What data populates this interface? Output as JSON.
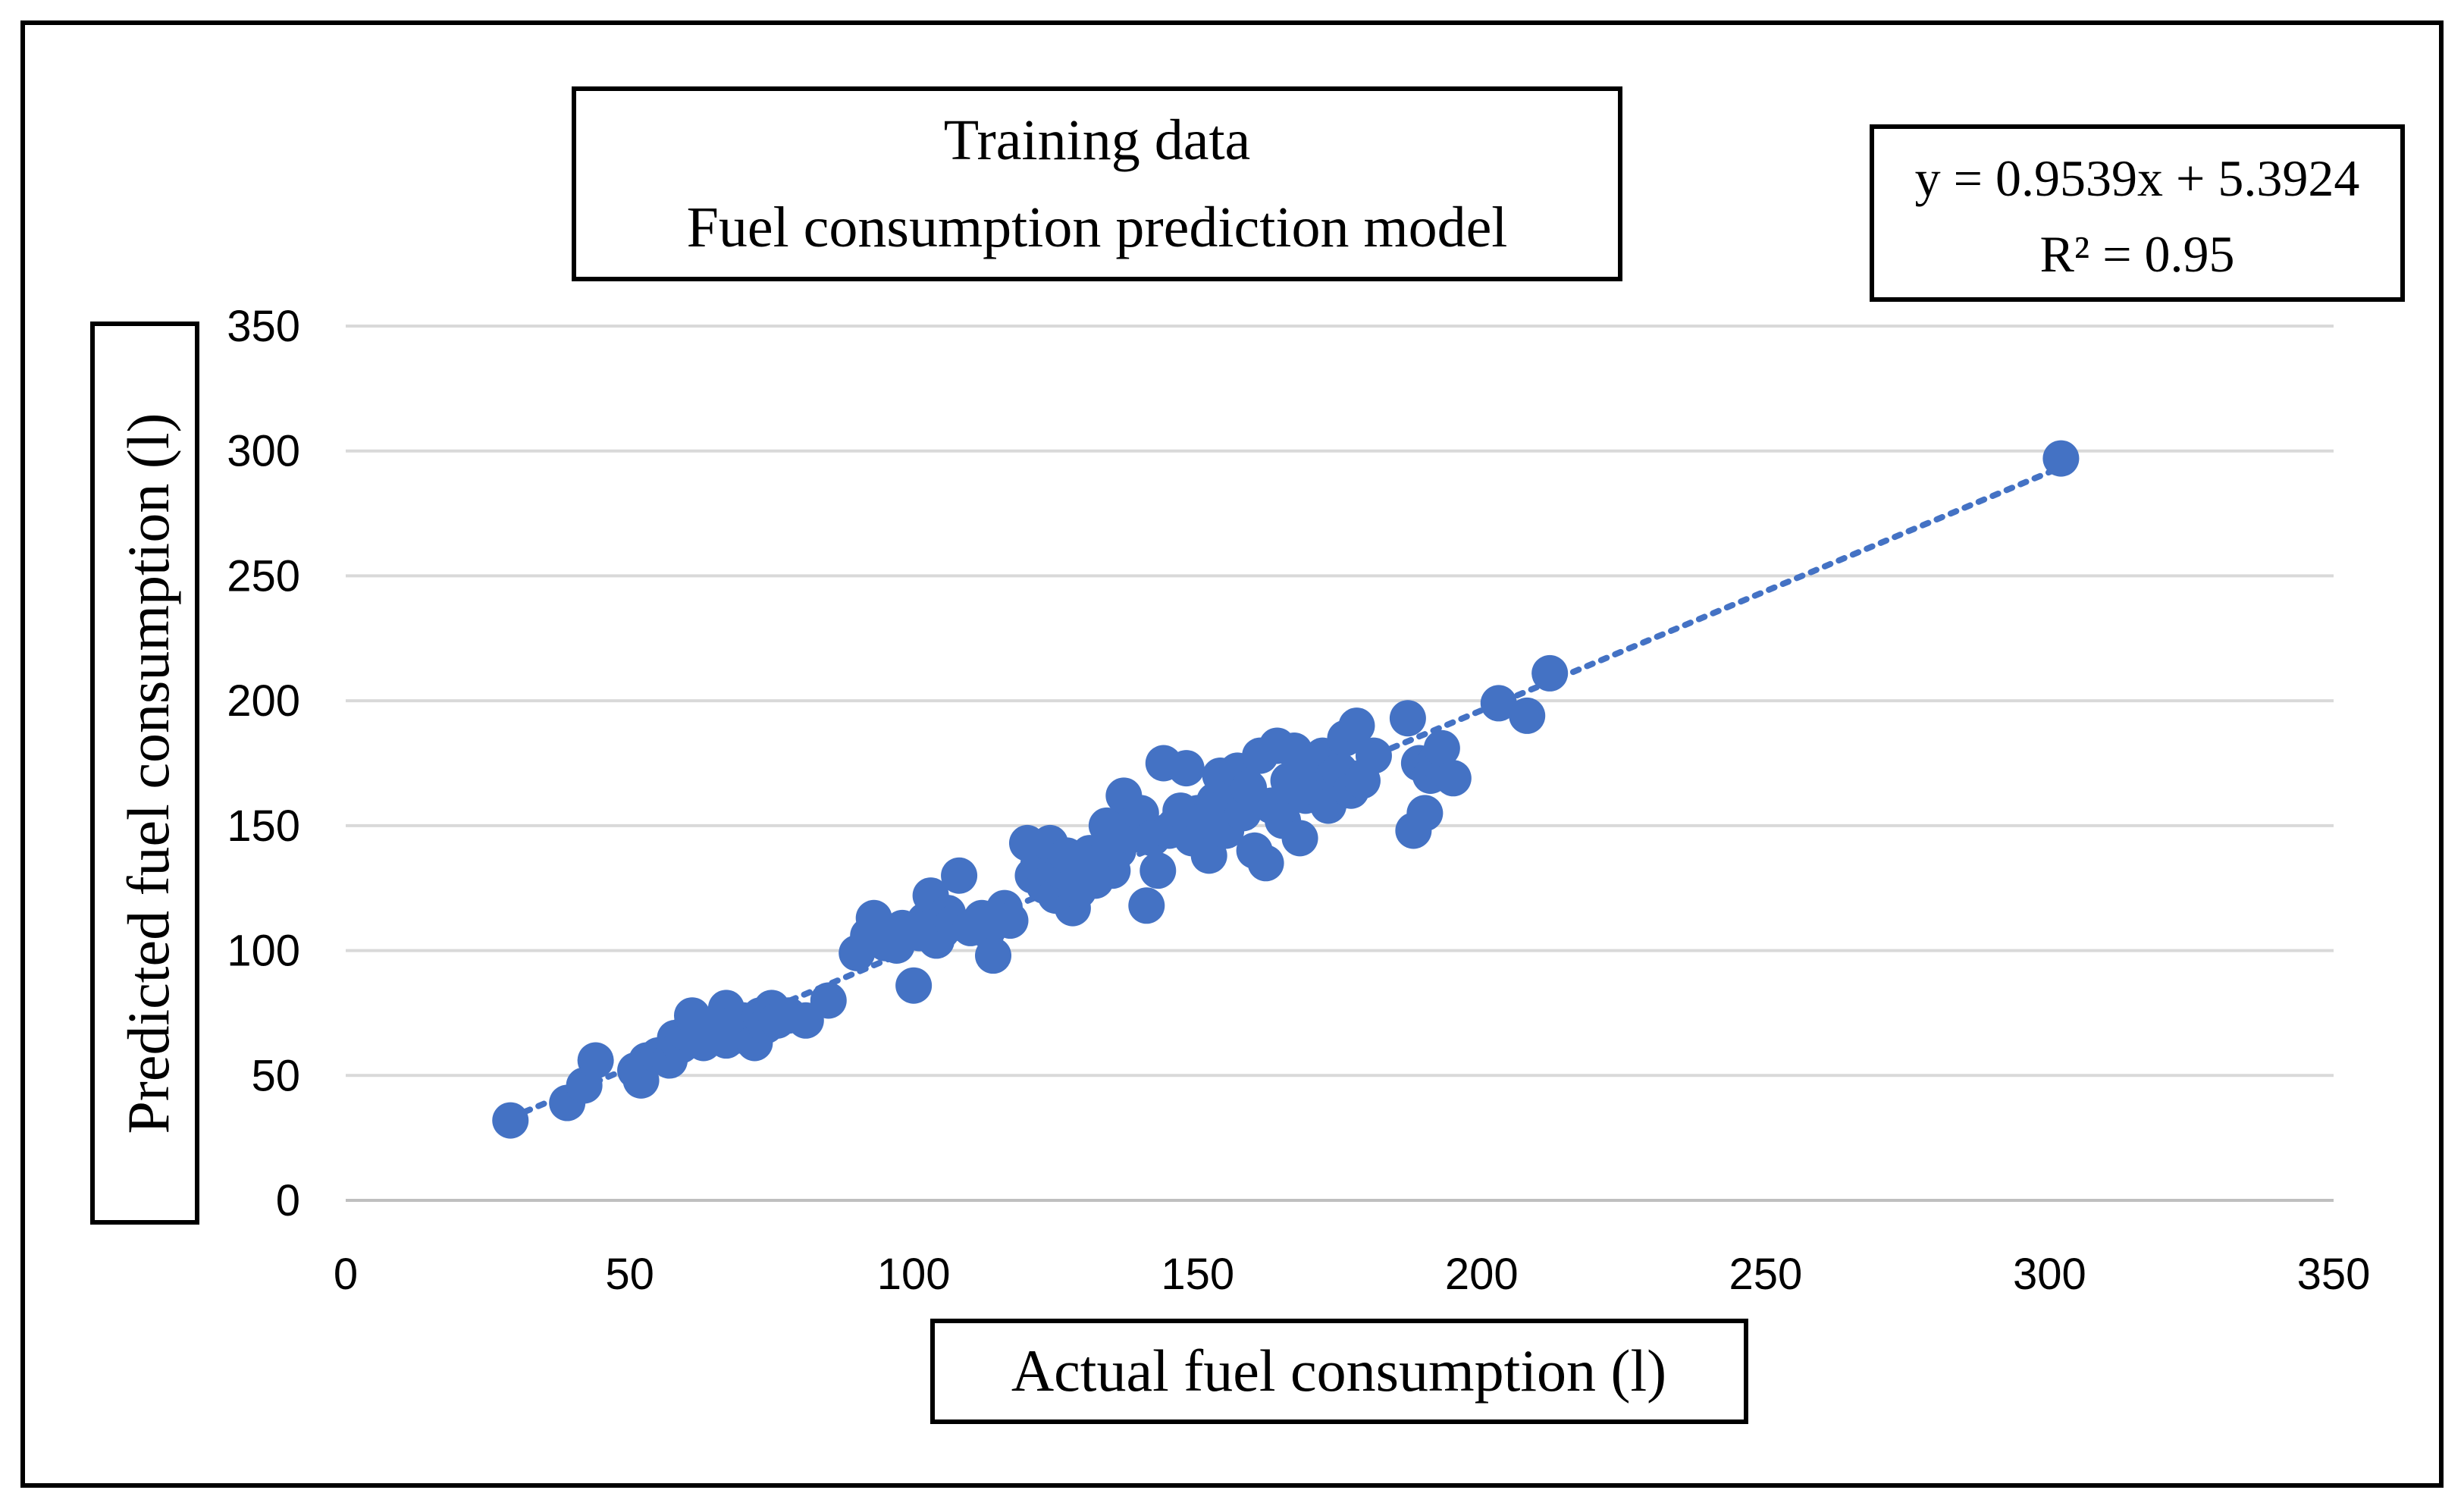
{
  "chart_data": {
    "type": "scatter",
    "title_lines": [
      "Training data",
      "Fuel consumption prediction model"
    ],
    "xlabel": "Actual fuel consumption (l)",
    "ylabel": "Predicted fuel consumption (l)",
    "xlim": [
      0,
      350
    ],
    "ylim": [
      0,
      350
    ],
    "x_ticks": [
      "0",
      "50",
      "100",
      "150",
      "200",
      "250",
      "300",
      "350"
    ],
    "y_ticks": [
      "0",
      "50",
      "100",
      "150",
      "200",
      "250",
      "300",
      "350"
    ],
    "gridlines": "horizontal",
    "equation_lines": [
      "y = 0.9539x + 5.3924",
      "R² = 0.95"
    ],
    "trendline": {
      "slope": 0.9539,
      "intercept": 5.3924,
      "x_range": [
        29,
        302
      ],
      "style": "dotted"
    },
    "marker_color": "#4472c4",
    "trendline_color": "#4472c4",
    "points": [
      [
        29,
        32
      ],
      [
        39,
        39
      ],
      [
        42,
        46
      ],
      [
        44,
        56
      ],
      [
        51,
        52
      ],
      [
        52,
        48
      ],
      [
        53,
        56
      ],
      [
        55,
        58
      ],
      [
        57,
        56
      ],
      [
        58,
        65
      ],
      [
        59,
        62
      ],
      [
        60,
        67
      ],
      [
        61,
        74
      ],
      [
        62,
        66
      ],
      [
        63,
        63
      ],
      [
        64,
        70
      ],
      [
        65,
        68
      ],
      [
        66,
        72
      ],
      [
        67,
        77
      ],
      [
        67,
        64
      ],
      [
        68,
        70
      ],
      [
        69,
        66
      ],
      [
        70,
        72
      ],
      [
        71,
        68
      ],
      [
        72,
        63
      ],
      [
        73,
        74
      ],
      [
        74,
        70
      ],
      [
        75,
        77
      ],
      [
        76,
        72
      ],
      [
        78,
        74
      ],
      [
        81,
        72
      ],
      [
        85,
        80
      ],
      [
        90,
        99
      ],
      [
        92,
        106
      ],
      [
        93,
        113
      ],
      [
        95,
        103
      ],
      [
        97,
        102
      ],
      [
        98,
        109
      ],
      [
        100,
        86
      ],
      [
        101,
        107
      ],
      [
        102,
        112
      ],
      [
        103,
        122
      ],
      [
        104,
        104
      ],
      [
        105,
        108
      ],
      [
        106,
        115
      ],
      [
        107,
        111
      ],
      [
        108,
        130
      ],
      [
        110,
        109
      ],
      [
        112,
        113
      ],
      [
        113,
        108
      ],
      [
        114,
        98
      ],
      [
        116,
        117
      ],
      [
        117,
        112
      ],
      [
        120,
        143
      ],
      [
        121,
        130
      ],
      [
        122,
        135
      ],
      [
        123,
        126
      ],
      [
        124,
        143
      ],
      [
        125,
        122
      ],
      [
        126,
        132
      ],
      [
        127,
        138
      ],
      [
        128,
        117
      ],
      [
        129,
        124
      ],
      [
        130,
        133
      ],
      [
        131,
        139
      ],
      [
        132,
        128
      ],
      [
        133,
        136
      ],
      [
        134,
        150
      ],
      [
        135,
        132
      ],
      [
        136,
        140
      ],
      [
        137,
        162
      ],
      [
        138,
        146
      ],
      [
        139,
        152
      ],
      [
        140,
        155
      ],
      [
        141,
        118
      ],
      [
        142,
        145
      ],
      [
        143,
        132
      ],
      [
        144,
        175
      ],
      [
        145,
        148
      ],
      [
        146,
        150
      ],
      [
        147,
        156
      ],
      [
        148,
        173
      ],
      [
        149,
        145
      ],
      [
        150,
        155
      ],
      [
        151,
        152
      ],
      [
        152,
        138
      ],
      [
        153,
        160
      ],
      [
        154,
        170
      ],
      [
        155,
        148
      ],
      [
        156,
        163
      ],
      [
        157,
        172
      ],
      [
        158,
        155
      ],
      [
        159,
        165
      ],
      [
        160,
        140
      ],
      [
        161,
        178
      ],
      [
        162,
        135
      ],
      [
        163,
        158
      ],
      [
        164,
        182
      ],
      [
        165,
        152
      ],
      [
        166,
        168
      ],
      [
        167,
        180
      ],
      [
        168,
        145
      ],
      [
        169,
        162
      ],
      [
        170,
        175
      ],
      [
        171,
        165
      ],
      [
        172,
        178
      ],
      [
        173,
        158
      ],
      [
        174,
        170
      ],
      [
        175,
        172
      ],
      [
        176,
        185
      ],
      [
        177,
        164
      ],
      [
        178,
        190
      ],
      [
        179,
        168
      ],
      [
        181,
        178
      ],
      [
        187,
        193
      ],
      [
        188,
        148
      ],
      [
        189,
        175
      ],
      [
        190,
        155
      ],
      [
        191,
        170
      ],
      [
        192,
        176
      ],
      [
        193,
        181
      ],
      [
        195,
        169
      ],
      [
        203,
        199
      ],
      [
        208,
        194
      ],
      [
        212,
        211
      ],
      [
        302,
        297
      ]
    ]
  }
}
